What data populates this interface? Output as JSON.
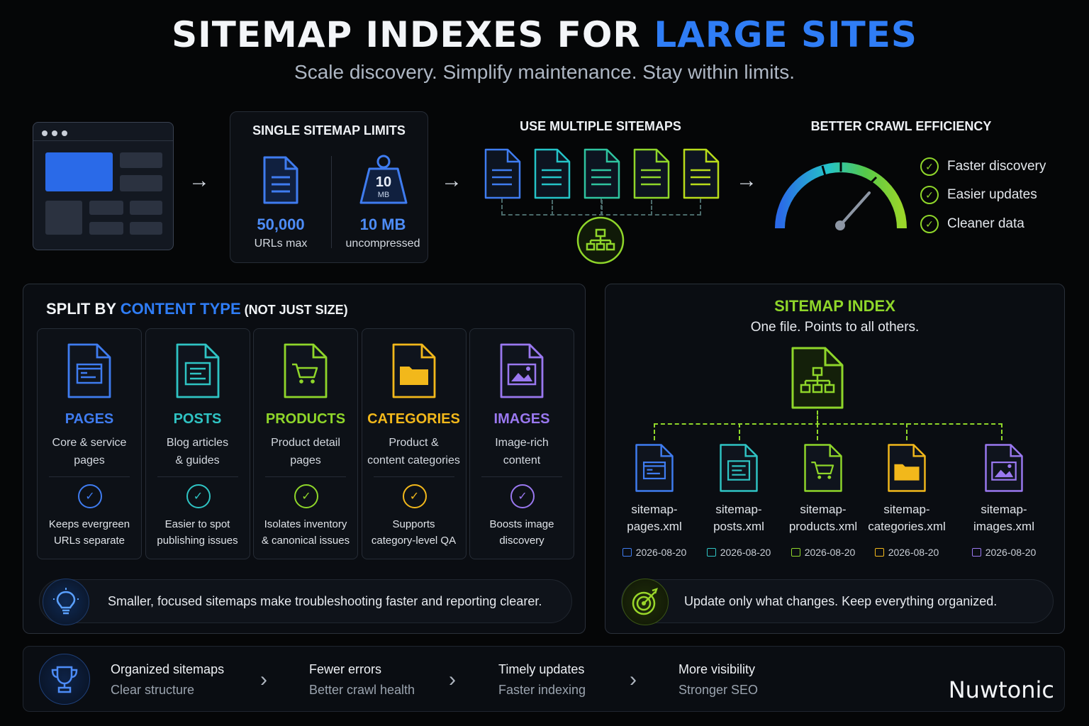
{
  "header": {
    "title_main": "SITEMAP INDEXES FOR ",
    "title_accent": "LARGE SITES",
    "subtitle": "Scale discovery. Simplify maintenance. Stay within limits."
  },
  "limits": {
    "title": "SINGLE SITEMAP LIMITS",
    "urls_value": "50,000",
    "urls_label": "URLs max",
    "size_value": "10 MB",
    "size_label": "uncompressed",
    "weight_num": "10",
    "weight_unit": "MB"
  },
  "multiple": {
    "title": "USE MULTIPLE SITEMAPS"
  },
  "efficiency": {
    "title": "BETTER CRAWL EFFICIENCY",
    "benefits": [
      "Faster discovery",
      "Easier updates",
      "Cleaner data"
    ]
  },
  "split": {
    "title_a": "SPLIT BY ",
    "title_accent": "CONTENT TYPE",
    "title_b": " (NOT JUST SIZE)",
    "types": [
      {
        "name": "PAGES",
        "desc1": "Core & service",
        "desc2": "pages",
        "benefit1": "Keeps evergreen",
        "benefit2": "URLs separate",
        "color": "#3f7cf0"
      },
      {
        "name": "POSTS",
        "desc1": "Blog articles",
        "desc2": "& guides",
        "benefit1": "Easier to spot",
        "benefit2": "publishing issues",
        "color": "#2fc4c4"
      },
      {
        "name": "PRODUCTS",
        "desc1": "Product detail",
        "desc2": "pages",
        "benefit1": "Isolates inventory",
        "benefit2": "& canonical issues",
        "color": "#8fd62a"
      },
      {
        "name": "CATEGORIES",
        "desc1": "Product &",
        "desc2": "content categories",
        "benefit1": "Supports",
        "benefit2": "category-level QA",
        "color": "#f2b81b"
      },
      {
        "name": "IMAGES",
        "desc1": "Image-rich",
        "desc2": "content",
        "benefit1": "Boosts image",
        "benefit2": "discovery",
        "color": "#9a78f0"
      }
    ],
    "tip": "Smaller, focused sitemaps make troubleshooting faster and reporting clearer."
  },
  "index": {
    "title": "SITEMAP INDEX",
    "subtitle": "One file. Points to all others.",
    "files": [
      {
        "line1": "sitemap-",
        "line2": "pages.xml",
        "date": "2026-08-20",
        "color": "#3f7cf0"
      },
      {
        "line1": "sitemap-",
        "line2": "posts.xml",
        "date": "2026-08-20",
        "color": "#2fc4c4"
      },
      {
        "line1": "sitemap-",
        "line2": "products.xml",
        "date": "2026-08-20",
        "color": "#8fd62a"
      },
      {
        "line1": "sitemap-",
        "line2": "categories.xml",
        "date": "2026-08-20",
        "color": "#f2b81b"
      },
      {
        "line1": "sitemap-",
        "line2": "images.xml",
        "date": "2026-08-20",
        "color": "#9a78f0"
      }
    ],
    "tip": "Update only what changes. Keep everything organized."
  },
  "bottom": {
    "steps": [
      {
        "title": "Organized sitemaps",
        "sub": "Clear structure"
      },
      {
        "title": "Fewer errors",
        "sub": "Better crawl health"
      },
      {
        "title": "Timely updates",
        "sub": "Faster indexing"
      },
      {
        "title": "More visibility",
        "sub": "Stronger SEO"
      }
    ],
    "brand": "Nuwtonic"
  }
}
